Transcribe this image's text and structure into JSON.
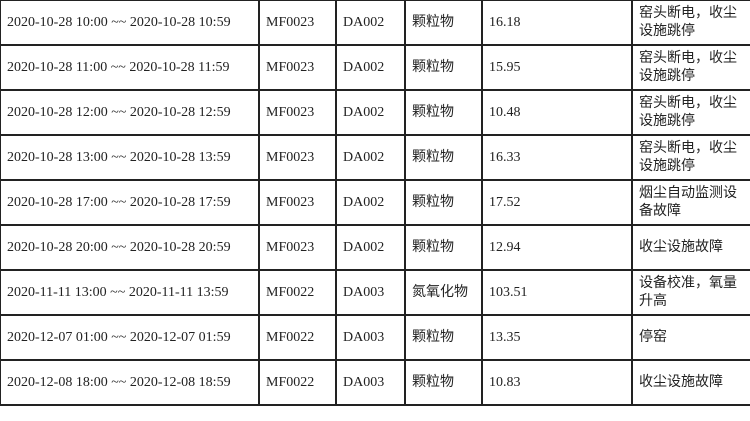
{
  "rows": [
    {
      "period": "2020-10-28 10:00 ~~ 2020-10-28 10:59",
      "code": "MF0023",
      "outlet": "DA002",
      "pollutant": "颗粒物",
      "value": "16.18",
      "reason": "窑头断电，收尘设施跳停"
    },
    {
      "period": "2020-10-28 11:00 ~~ 2020-10-28 11:59",
      "code": "MF0023",
      "outlet": "DA002",
      "pollutant": "颗粒物",
      "value": "15.95",
      "reason": "窑头断电，收尘设施跳停"
    },
    {
      "period": "2020-10-28 12:00 ~~ 2020-10-28 12:59",
      "code": "MF0023",
      "outlet": "DA002",
      "pollutant": "颗粒物",
      "value": "10.48",
      "reason": "窑头断电，收尘设施跳停"
    },
    {
      "period": "2020-10-28 13:00 ~~ 2020-10-28 13:59",
      "code": "MF0023",
      "outlet": "DA002",
      "pollutant": "颗粒物",
      "value": "16.33",
      "reason": "窑头断电，收尘设施跳停"
    },
    {
      "period": "2020-10-28 17:00 ~~ 2020-10-28 17:59",
      "code": "MF0023",
      "outlet": "DA002",
      "pollutant": "颗粒物",
      "value": "17.52",
      "reason": "烟尘自动监测设备故障"
    },
    {
      "period": "2020-10-28 20:00 ~~ 2020-10-28 20:59",
      "code": "MF0023",
      "outlet": "DA002",
      "pollutant": "颗粒物",
      "value": "12.94",
      "reason": "收尘设施故障"
    },
    {
      "period": "2020-11-11 13:00 ~~ 2020-11-11 13:59",
      "code": "MF0022",
      "outlet": "DA003",
      "pollutant": "氮氧化物",
      "value": "103.51",
      "reason": "设备校准，氧量升高"
    },
    {
      "period": "2020-12-07 01:00 ~~ 2020-12-07 01:59",
      "code": "MF0022",
      "outlet": "DA003",
      "pollutant": "颗粒物",
      "value": "13.35",
      "reason": "停窑"
    },
    {
      "period": "2020-12-08 18:00 ~~ 2020-12-08 18:59",
      "code": "MF0022",
      "outlet": "DA003",
      "pollutant": "颗粒物",
      "value": "10.83",
      "reason": "收尘设施故障"
    }
  ]
}
